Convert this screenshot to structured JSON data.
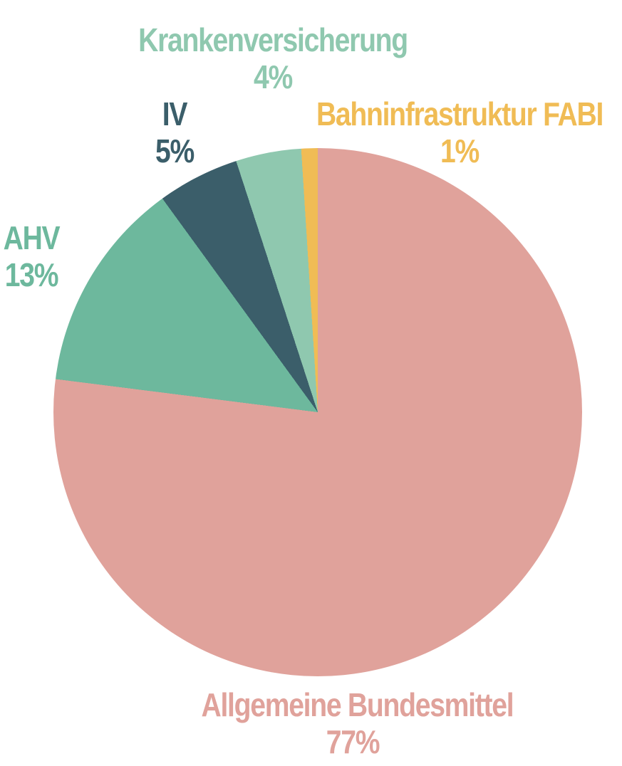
{
  "chart_data": {
    "type": "pie",
    "title": "",
    "start_angle_deg": 0,
    "direction": "clockwise",
    "legend_position": "labels-around-pie",
    "background_color": "#ffffff",
    "slices": [
      {
        "label": "Allgemeine Bundesmittel",
        "value": 77,
        "pct_label": "77%",
        "color": "#e0a29b"
      },
      {
        "label": "AHV",
        "value": 13,
        "pct_label": "13%",
        "color": "#6db89d"
      },
      {
        "label": "IV",
        "value": 5,
        "pct_label": "5%",
        "color": "#3b5e6a"
      },
      {
        "label": "Krankenversicherung",
        "value": 4,
        "pct_label": "4%",
        "color": "#8fc8af"
      },
      {
        "label": "Bahninfrastruktur FABI",
        "value": 1,
        "pct_label": "1%",
        "color": "#f0bc55"
      }
    ]
  }
}
